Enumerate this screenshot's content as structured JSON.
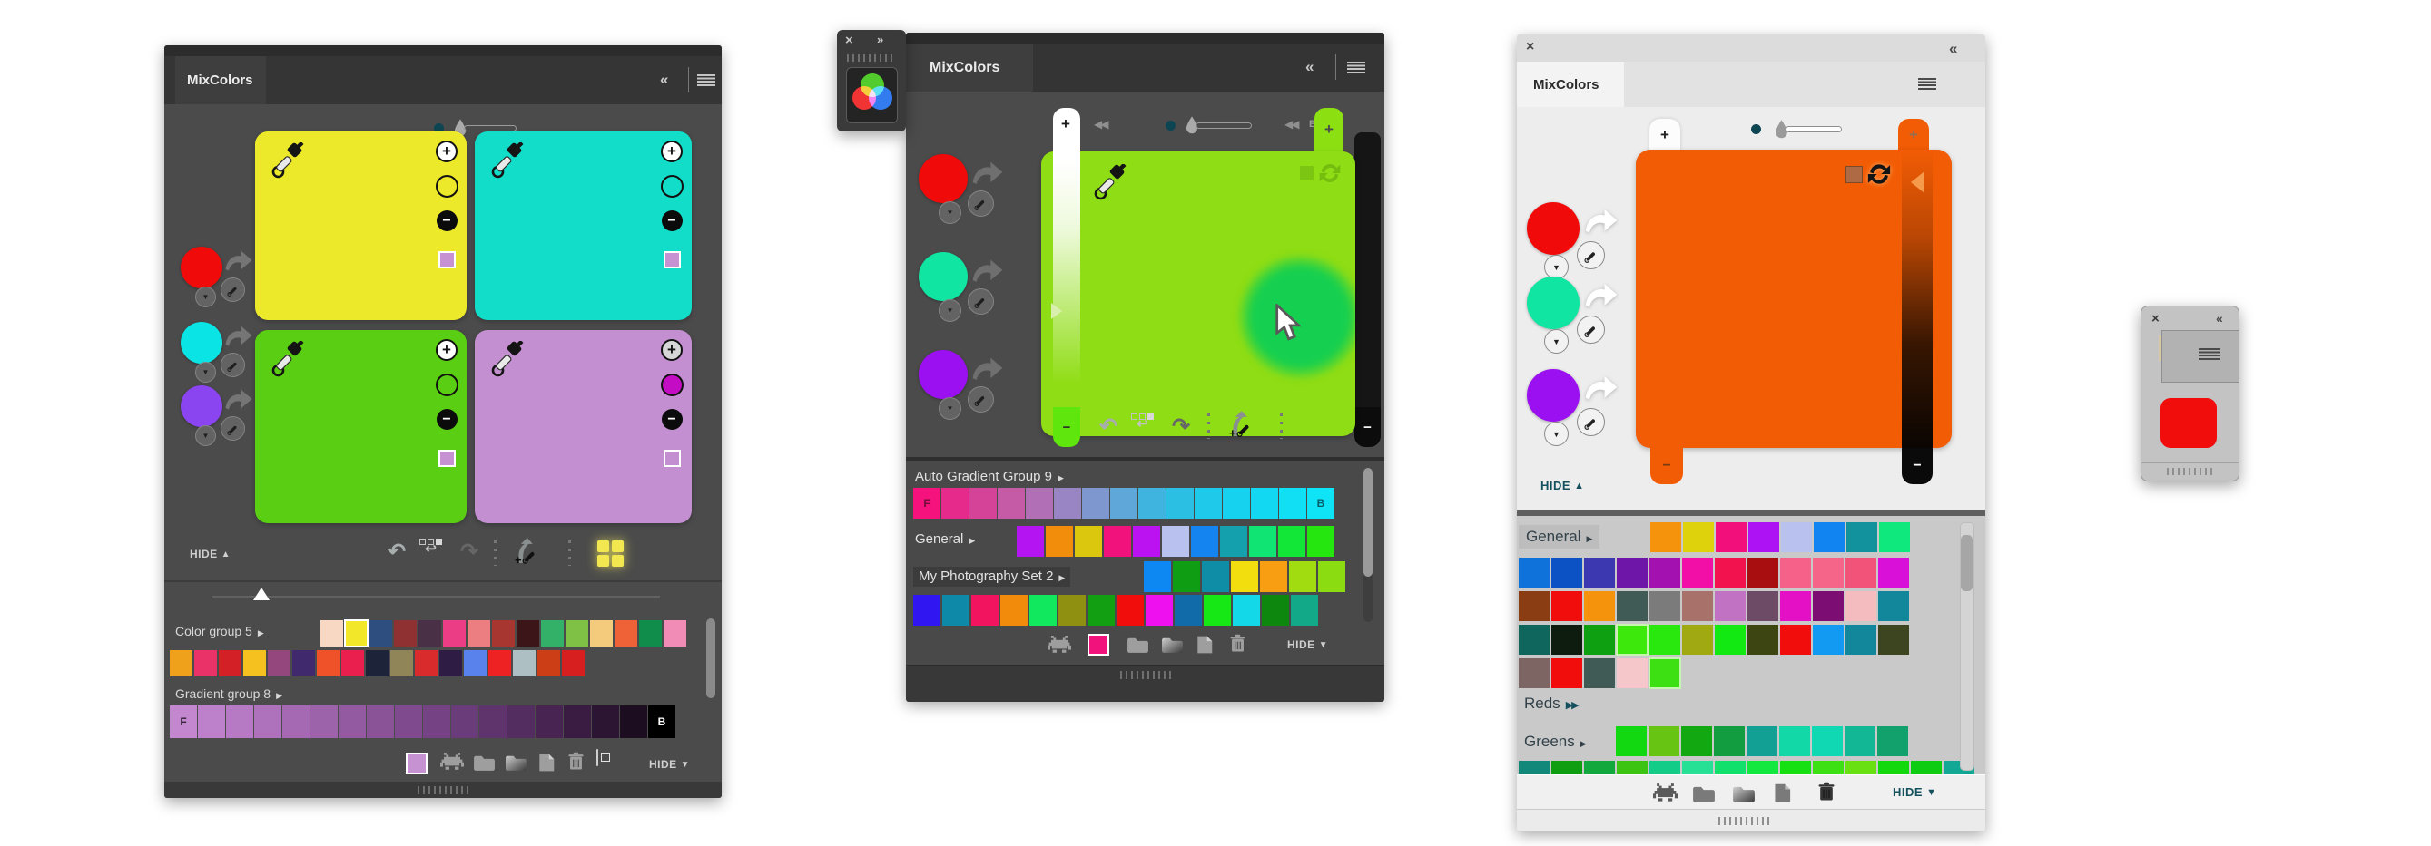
{
  "glyphs": {
    "plus": "+",
    "minus": "−",
    "close": "×",
    "collapse_left": "«",
    "expand_right": "»",
    "tri_down": "▼",
    "tri_right": "▶",
    "tri_right2": "▶▶",
    "rewind": "◀◀",
    "undo": "↶",
    "redo": "↷",
    "restore_arrow": "↩",
    "up": "▲",
    "down": "▼"
  },
  "p1": {
    "tab": "MixColors",
    "hide": "HIDE",
    "sources": [
      "#f00a0a",
      "#0ae4e4",
      "#8b45f0"
    ],
    "pads": [
      {
        "color": "#ece82a",
        "ring": "#ece82a",
        "square": "#c792d2"
      },
      {
        "color": "#12ddc9",
        "ring": "#12ddc9",
        "square": "#c792d2"
      },
      {
        "color": "#5ace12",
        "ring": "#5ace12",
        "square": "#c792d2"
      },
      {
        "color": "#c38fd0",
        "ring": "#c50cc5",
        "square": "transparent"
      }
    ],
    "g1_label": "Color group 5",
    "g1r1": [
      "#f8d8c2",
      {
        "c": "#f2e829",
        "cls": "sel"
      },
      "#2d4e7e",
      "#8f3133",
      "#4a3046",
      "#ea3d85",
      "#ec7d80",
      "#a83630",
      "#3b1517",
      "#33b169",
      "#7fc145",
      "#f4ca7d",
      "#ef6136",
      "#108c4b",
      "#f08cb5"
    ],
    "g1r2": [
      "#efa11b",
      "#ea3168",
      "#d32026",
      "#f5c11e",
      "#94477c",
      "#41296e",
      "#ef5229",
      "#ea1f4d",
      "#1d2439",
      "#8f8559",
      "#d92b2b",
      "#2f1c45",
      "#5a82ec",
      "#ee2222",
      "#aebfc3",
      "#cc3e16",
      "#d81f1f"
    ],
    "g2_label": "Gradient group 8",
    "g2": [
      {
        "c": "#c287cf",
        "t": "F",
        "tc": "#332233"
      },
      "#bd80cb",
      "#b679c4",
      "#ae71bc",
      "#a569b3",
      "#9c62aa",
      "#935aa1",
      "#8a5398",
      "#804b8e",
      "#754384",
      "#6a3c79",
      "#5f346d",
      "#532c60",
      "#472452",
      "#3a1c43",
      "#2c1532",
      "#1d0d20",
      {
        "c": "#000000",
        "t": "B",
        "tc": "#ffffff"
      }
    ],
    "toolbar_swatch": "#c792d2"
  },
  "p2": {
    "tab": "MixColors",
    "hide": "HIDE",
    "back_label": "B",
    "sources": [
      "#f00a0a",
      "#10e5a2",
      "#9b10f0"
    ],
    "pad": "#8fdd14",
    "blob": "#15cf50",
    "plus_tab": "#8ce012",
    "minus_tab": "#5fe60c",
    "g1_label": "Auto Gradient Group 9",
    "g1": [
      {
        "c": "#f5127c",
        "t": "F",
        "tc": "#6e0d38"
      },
      "#e62a8b",
      "#d54398",
      "#c55aa6",
      "#b170b5",
      "#9a85c4",
      "#7e97cf",
      "#5ea7d8",
      "#3eb4de",
      "#2bbfe4",
      "#1fc9e9",
      "#17d2ee",
      "#12d9f1",
      "#10dff4",
      {
        "c": "#0fe3f6",
        "t": "B",
        "tc": "#075e68"
      }
    ],
    "g2_label": "General",
    "g2": [
      "#b414f2",
      "#f28d0c",
      "#dcc70f",
      "#f2127c",
      "#ba12f0",
      "#b9c1ef",
      "#1484f0",
      "#15a0ad",
      "#10e573",
      "#12e636",
      "#25e60f"
    ],
    "g3_label": "My Photography Set 2",
    "g3r1": [
      "#0d87f2",
      "#0f9d14",
      "#0f8ca6",
      "#f2dd0e",
      "#f79e12",
      "#a0dc10",
      "#8cdc12"
    ],
    "g3r2": [
      "#3016f0",
      "#0f89a8",
      "#f2145e",
      "#f28a0c",
      "#12e85e",
      "#8f9012",
      "#12a012",
      "#f20d0d",
      "#ee10ee",
      "#106ba8",
      "#16e816",
      "#12d8e8",
      "#0d870d",
      "#12a988"
    ],
    "toolbar_swatch": "#f2127c"
  },
  "p3": {
    "tab": "MixColors",
    "hide": "HIDE",
    "sources": [
      "#f00a0a",
      "#10e5a2",
      "#9b10f0"
    ],
    "pad": "#f25c04",
    "swap_square": "#ad6a44",
    "g1_label": "General",
    "g1r1": [
      "#f5930c",
      "#ded20c",
      "#f20f7c",
      "#ad12f5",
      "#b9c1ef",
      "#1284f2",
      "#12929c",
      "#0fe87c"
    ],
    "g1r2": [
      "#0f72da",
      "#0d52c4",
      "#3c38b0",
      "#6d16a8",
      "#a312b0",
      "#f20fa8",
      "#f2124e",
      "#a80d10",
      "#f56189",
      "#f56489",
      "#f25378",
      "#d810d8"
    ],
    "g1r3": [
      "#8a3d12",
      "#f20d0d",
      "#f5930c",
      "#405a56",
      "#7b7b7b",
      "#a8716a",
      "#c272c2",
      "#6d4a66",
      "#e310c6",
      "#7c0d72",
      "#f5bcc0",
      "#12879c"
    ],
    "g1r4": [
      "#0f665c",
      "#0d1c0f",
      "#0fa012",
      {
        "c": "#3de80d",
        "cls": "sel2"
      },
      "#28e80d",
      "#a0a812",
      "#12e812",
      "#3d4512",
      "#f20d0d",
      "#129af2",
      "#12879c",
      "#3d4520"
    ],
    "g1r5": [
      "#7c6562",
      "#f20d0d",
      "#405a56",
      "#f5c6ca",
      {
        "c": "#3de012",
        "cls": "sel2"
      }
    ],
    "g2_label": "Reds",
    "g3_label": "Greens",
    "g3r1": [
      "#12d812",
      "#68c412",
      "#12a812",
      "#129e40",
      "#12a095",
      "#12d8a8",
      "#10d8b2",
      "#12b895",
      "#12a06c"
    ],
    "g3r2": [
      "#12887a",
      "#0f9e12",
      "#12a83d",
      "#3dc412",
      "#12cc88",
      "#26e095",
      "#12e06c",
      "#12e840",
      "#16e012",
      "#3de012",
      "#68e012",
      "#12d80d",
      "#0dcc12",
      "#12a895"
    ]
  },
  "p4": {
    "swatch": "#f20d0d"
  }
}
